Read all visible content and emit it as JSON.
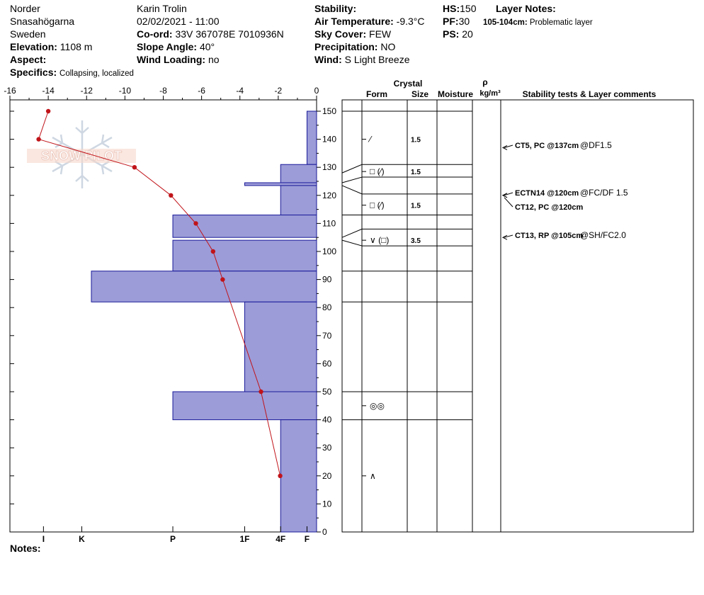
{
  "header": {
    "region": "Norder",
    "location": "Snasahögarna",
    "country": "Sweden",
    "elevation_label": "Elevation:",
    "elevation": "1108 m",
    "aspect_label": "Aspect:",
    "aspect": "",
    "specifics_label": "Specifics:",
    "specifics": "Collapsing, localized",
    "observer": "Karin  Trolin",
    "datetime": "02/02/2021 - 11:00",
    "coord_label": "Co-ord:",
    "coord": "33V 367078E 7010936N",
    "slope_label": "Slope Angle:",
    "slope": "40°",
    "wind_loading_label": "Wind Loading:",
    "wind_loading": "no",
    "stability_label": "Stability:",
    "stability": "",
    "air_temp_label": "Air Temperature:",
    "air_temp": "-9.3°C",
    "sky_label": "Sky Cover:",
    "sky": "FEW",
    "precip_label": "Precipitation:",
    "precip": "NO",
    "wind_label": "Wind:",
    "wind": "S Light Breeze",
    "hs_label": "HS:",
    "hs": "150",
    "pf_label": "PF:",
    "pf": "30",
    "ps_label": "PS:",
    "ps": "20",
    "layer_notes_label": "Layer Notes:",
    "layer_note_depth": "105-104cm:",
    "layer_note_text": "Problematic layer"
  },
  "notes_label": "Notes:",
  "watermark": "SNOW PILOT",
  "columns": {
    "crystal": "Crystal",
    "form": "Form",
    "size": "Size",
    "moisture": "Moisture",
    "rho": "ρ",
    "density_unit": "kg/m³",
    "stability": "Stability tests & Layer comments"
  },
  "colors": {
    "hardness_fill": "#9c9cd8",
    "hardness_stroke": "#1a1a9a",
    "temp_line": "#c0141a"
  },
  "chart_data": {
    "type": "snow-profile",
    "temperature_axis": {
      "min": -16,
      "max": 0,
      "ticks": [
        -16,
        -14,
        -12,
        -10,
        -8,
        -6,
        -4,
        -2,
        0
      ],
      "tick_labels": [
        "-16",
        "-14",
        "-12",
        "-10",
        "-8",
        "-6",
        "-4",
        "-2",
        "0"
      ]
    },
    "height_axis": {
      "min": 0,
      "max": 150,
      "ticks": [
        0,
        10,
        20,
        30,
        40,
        50,
        60,
        70,
        80,
        90,
        100,
        110,
        120,
        130,
        140,
        150
      ],
      "tick_labels": [
        "0",
        "10",
        "20",
        "30",
        "40",
        "50",
        "60",
        "70",
        "80",
        "90",
        "100",
        "110",
        "120",
        "130",
        "140",
        "150"
      ]
    },
    "hardness_axis": {
      "labels": [
        "I",
        "K",
        "P",
        "1F",
        "4F",
        "F"
      ],
      "scale_index": [
        14.25,
        12.25,
        7.5,
        3.75,
        1.875,
        0.5
      ]
    },
    "temperature_profile": [
      {
        "height": 150,
        "temp": -14.0
      },
      {
        "height": 140,
        "temp": -14.5
      },
      {
        "height": 130,
        "temp": -9.5
      },
      {
        "height": 120,
        "temp": -7.6
      },
      {
        "height": 110,
        "temp": -6.3
      },
      {
        "height": 100,
        "temp": -5.4
      },
      {
        "height": 90,
        "temp": -4.9
      },
      {
        "height": 50,
        "temp": -2.9
      },
      {
        "height": 20,
        "temp": -1.9
      }
    ],
    "hardness_layers": [
      {
        "top": 150,
        "bottom": 131,
        "hardness": 0.5
      },
      {
        "top": 131,
        "bottom": 124.5,
        "hardness": 1.875
      },
      {
        "top": 124.5,
        "bottom": 123.5,
        "hardness": 3.75
      },
      {
        "top": 123.5,
        "bottom": 113,
        "hardness": 1.875
      },
      {
        "top": 113,
        "bottom": 105,
        "hardness": 7.5
      },
      {
        "top": 104,
        "bottom": 93,
        "hardness": 7.5
      },
      {
        "top": 93,
        "bottom": 82,
        "hardness": 11.75
      },
      {
        "top": 82,
        "bottom": 50,
        "hardness": 3.75
      },
      {
        "top": 50,
        "bottom": 40,
        "hardness": 7.5
      },
      {
        "top": 40,
        "bottom": 0,
        "hardness": 1.875
      }
    ],
    "layer_boundaries": [
      150,
      131,
      126.5,
      120.5,
      113,
      108,
      102,
      93,
      82,
      50,
      40
    ],
    "layers": [
      {
        "mid": 140,
        "form": "⁄",
        "size": "1.5"
      },
      {
        "mid": 128.5,
        "form": "□ (⁄)",
        "size": "1.5"
      },
      {
        "mid": 116.5,
        "form": "□ (⁄)",
        "size": "1.5"
      },
      {
        "mid": 104,
        "form": "∨ (□)",
        "size": "3.5"
      },
      {
        "mid": 45,
        "form": "◎◎",
        "size": ""
      },
      {
        "mid": 20,
        "form": "∧",
        "size": ""
      }
    ],
    "stability_tests": [
      {
        "height": 137,
        "label": "CT5, PC @137cm",
        "extra": "@DF1.5"
      },
      {
        "height": 120,
        "label": "ECTN14 @120cm",
        "extra": "@FC/DF 1.5"
      },
      {
        "height": 120,
        "label": "CT12, PC @120cm",
        "extra": ""
      },
      {
        "height": 105,
        "label": "CT13, RP @105cm",
        "extra": "@SH/FC2.0"
      }
    ]
  }
}
